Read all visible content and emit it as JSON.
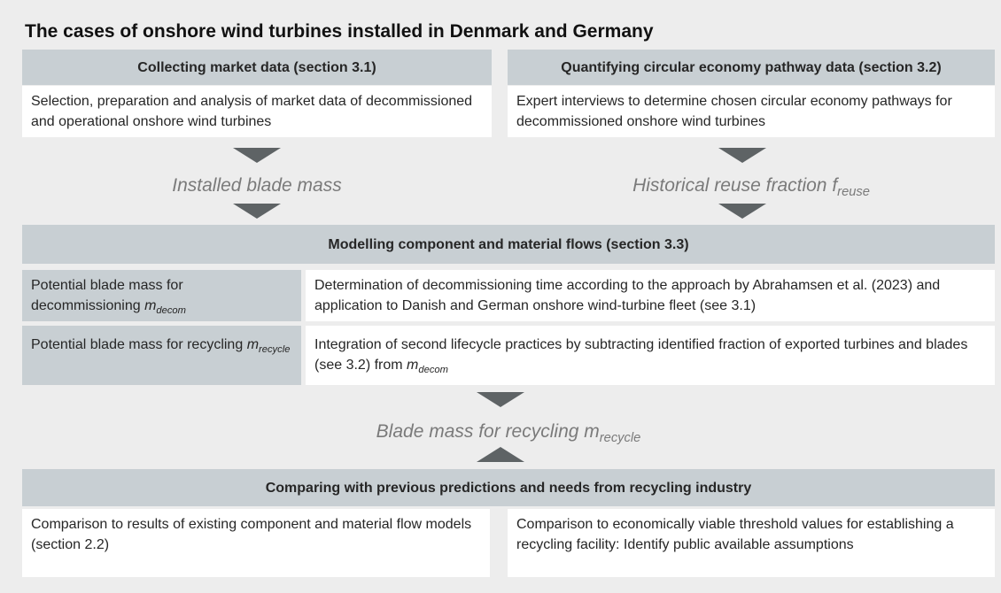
{
  "title": "The cases of onshore wind turbines installed in Denmark and Germany",
  "top": [
    {
      "header": "Collecting market data (section 3.1)",
      "body": "Selection, preparation and analysis of market data of decommissioned and operational onshore wind turbines",
      "flow": {
        "text": "Installed blade mass"
      }
    },
    {
      "header": "Quantifying circular economy pathway data (section 3.2)",
      "body": "Expert interviews to determine chosen circular economy pathways for decommissioned onshore wind turbines",
      "flow": {
        "text": "Historical reuse fraction",
        "var": "f",
        "sub": "reuse"
      }
    }
  ],
  "modelling": {
    "header": "Modelling  component and material flows (section 3.3)",
    "rows": [
      {
        "label": {
          "text": "Potential blade mass for decommissioning",
          "var": "m",
          "sub": "decom"
        },
        "description": {
          "text": "Determination of decommissioning time according to the approach by Abrahamsen et al. (2023) and application to Danish and German onshore wind-turbine fleet (see 3.1)"
        }
      },
      {
        "label": {
          "text": "Potential blade mass for recycling",
          "var": "m",
          "sub": "recycle"
        },
        "description": {
          "text": "Integration of second lifecycle practices by subtracting identified fraction of exported turbines and blades (see 3.2) from",
          "var": "m",
          "sub": "decom"
        }
      }
    ]
  },
  "result": {
    "text": "Blade mass for recycling",
    "var": "m",
    "sub": "recycle"
  },
  "compare": {
    "header": "Comparing with previous predictions and needs from recycling industry",
    "boxes": [
      "Comparison to results of existing component and material flow models (section 2.2)",
      "Comparison to economically viable threshold values for establishing a recycling facility: Identify public available assumptions"
    ]
  }
}
